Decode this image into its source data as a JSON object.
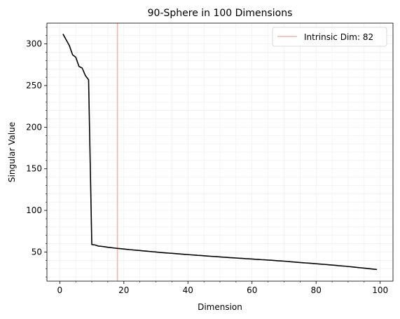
{
  "chart_data": {
    "type": "line",
    "title": "90-Sphere in 100 Dimensions",
    "xlabel": "Dimension",
    "ylabel": "Singular Value",
    "xlim": [
      -4,
      104
    ],
    "ylim": [
      15,
      325
    ],
    "xticks": [
      0,
      20,
      40,
      60,
      80,
      100
    ],
    "yticks": [
      50,
      100,
      150,
      200,
      250,
      300
    ],
    "xminor_step": 5,
    "yminor_step": 10,
    "grid": true,
    "legend_position": "top-right",
    "colors": {
      "line": "#000000",
      "vline": "#f4b6a8",
      "grid": "#ececec"
    },
    "vline": {
      "x": 18,
      "label": "Intrinsic Dim: 82"
    },
    "series": [
      {
        "x": [
          1,
          2,
          3,
          4,
          5,
          6,
          7,
          8,
          9,
          10,
          11,
          12,
          13,
          14,
          15,
          16,
          17,
          18,
          19,
          20,
          21,
          22,
          23,
          24,
          25,
          26,
          27,
          28,
          29,
          30,
          31,
          32,
          33,
          34,
          35,
          36,
          37,
          38,
          39,
          40,
          41,
          42,
          43,
          44,
          45,
          46,
          47,
          48,
          49,
          50,
          51,
          52,
          53,
          54,
          55,
          56,
          57,
          58,
          59,
          60,
          61,
          62,
          63,
          64,
          65,
          66,
          67,
          68,
          69,
          70,
          71,
          72,
          73,
          74,
          75,
          76,
          77,
          78,
          79,
          80,
          81,
          82,
          83,
          84,
          85,
          86,
          87,
          88,
          89,
          90,
          91,
          92,
          93,
          94,
          95,
          96,
          97,
          98,
          99
        ],
        "values": [
          312,
          305,
          298,
          287,
          284,
          273,
          271,
          262,
          257,
          59,
          58.5,
          57.2,
          56.8,
          56.3,
          55.7,
          55.3,
          54.8,
          54.3,
          54,
          53.6,
          53.2,
          52.8,
          52.4,
          52.1,
          51.8,
          51.4,
          51.1,
          50.7,
          50.3,
          50,
          49.6,
          49.3,
          49,
          48.7,
          48.4,
          48.1,
          47.8,
          47.5,
          47.2,
          46.9,
          46.6,
          46.3,
          46,
          45.8,
          45.5,
          45.2,
          44.9,
          44.6,
          44.4,
          44.1,
          43.8,
          43.6,
          43.3,
          43.1,
          42.8,
          42.5,
          42.3,
          42,
          41.8,
          41.6,
          41.3,
          41.1,
          40.8,
          40.6,
          40.3,
          40.1,
          39.8,
          39.5,
          39.3,
          39,
          38.7,
          38.3,
          38,
          37.7,
          37.4,
          37.1,
          36.8,
          36.5,
          36.2,
          35.9,
          35.6,
          35.3,
          35,
          34.6,
          34.3,
          34,
          33.6,
          33.3,
          33,
          32.6,
          32.2,
          31.8,
          31.4,
          31,
          30.6,
          30.2,
          29.8,
          29.4,
          29
        ]
      }
    ]
  }
}
